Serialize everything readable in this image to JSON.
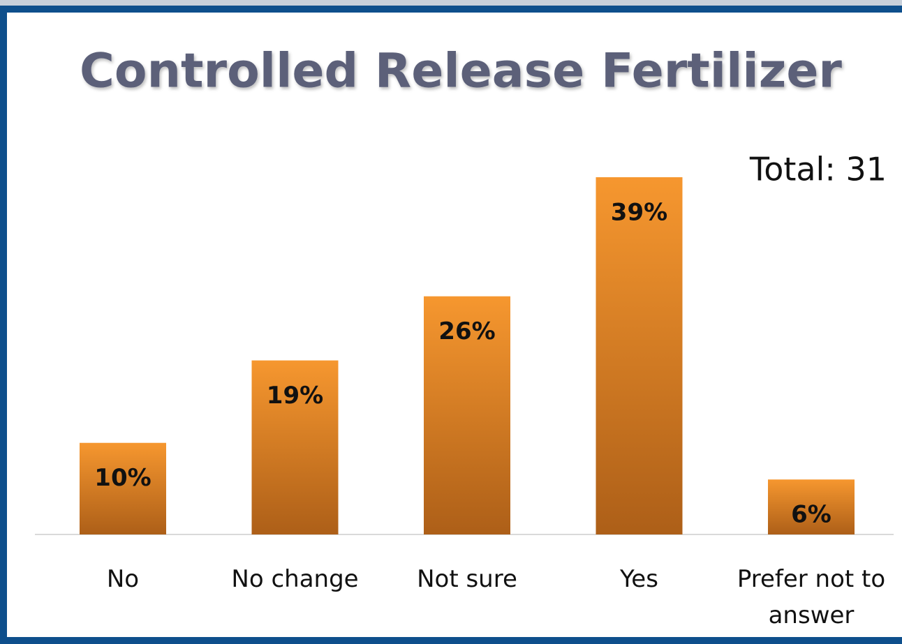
{
  "chart_data": {
    "type": "bar",
    "title": "Controlled Release Fertilizer",
    "annotation": "Total: 31",
    "categories": [
      "No",
      "No change",
      "Not sure",
      "Yes",
      "Prefer not to answer"
    ],
    "values": [
      10,
      19,
      26,
      39,
      6
    ],
    "value_labels": [
      "10%",
      "19%",
      "26%",
      "39%",
      "6%"
    ],
    "color": "#f6972f"
  }
}
